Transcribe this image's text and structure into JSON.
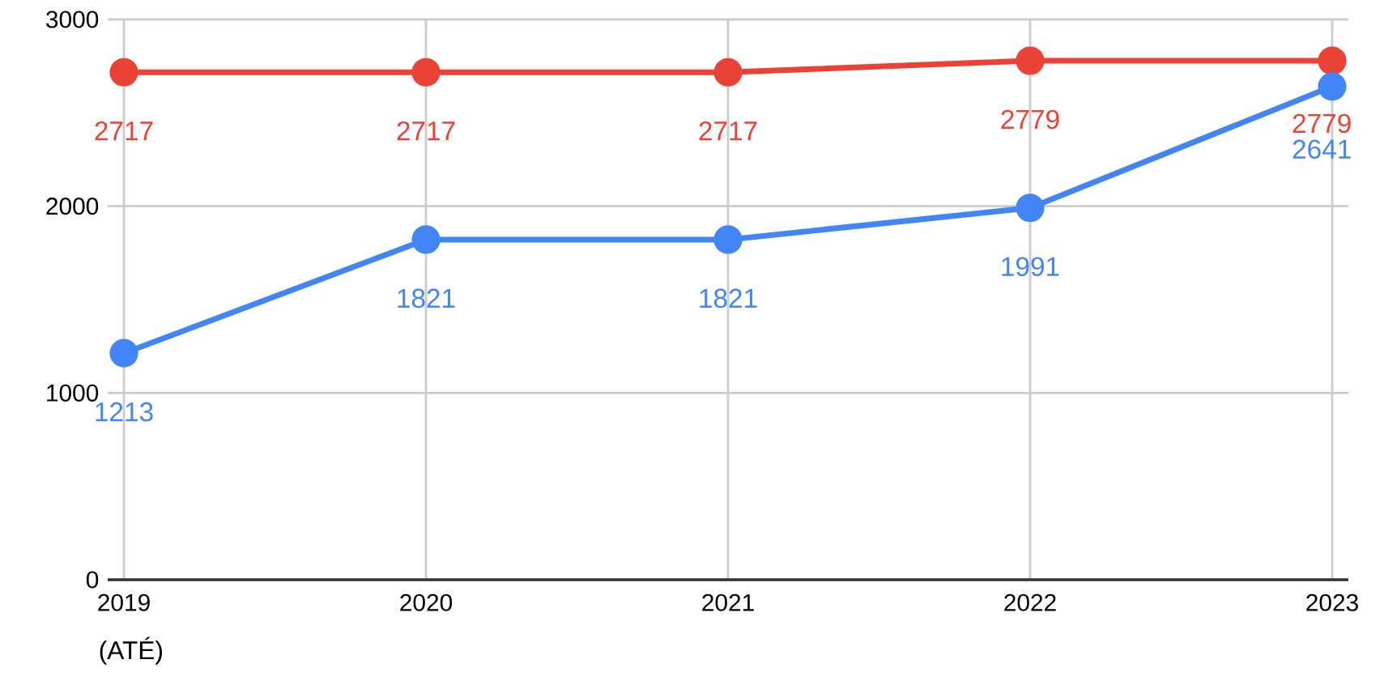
{
  "chart_data": {
    "type": "line",
    "categories": [
      "2019",
      "2020",
      "2021",
      "2022",
      "2023"
    ],
    "series": [
      {
        "color": "#ea4335",
        "values": [
          2717,
          2717,
          2717,
          2779,
          2779
        ]
      },
      {
        "color": "#4285f4",
        "values": [
          1213,
          1821,
          1821,
          1991,
          2641
        ]
      }
    ],
    "ylim": [
      0,
      3000
    ],
    "yticks": [
      0,
      1000,
      2000,
      3000
    ],
    "grid": true,
    "marker": "circle",
    "line_style": "solid",
    "data_labels": true,
    "annotations": [
      "(ATÉ)"
    ]
  }
}
